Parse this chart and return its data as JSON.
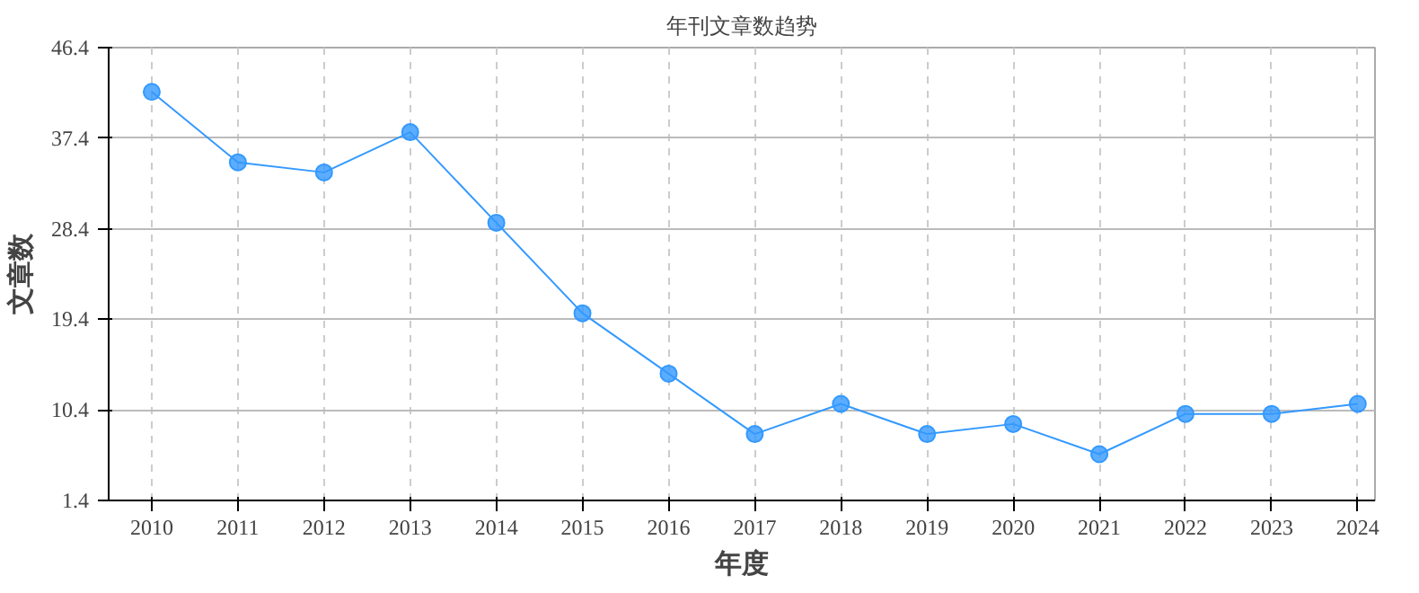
{
  "chart_data": {
    "type": "line",
    "title": "年刊文章数趋势",
    "xlabel": "年度",
    "ylabel": "文章数",
    "x": [
      2010,
      2011,
      2012,
      2013,
      2014,
      2015,
      2016,
      2017,
      2018,
      2019,
      2020,
      2021,
      2022,
      2023,
      2024
    ],
    "series": [
      {
        "color": "#3399ff",
        "values": [
          42,
          35,
          34,
          38,
          29,
          20,
          14,
          8,
          11,
          8,
          9,
          6,
          10,
          10,
          11
        ]
      }
    ],
    "xlim": [
      2009.5,
      2024.2
    ],
    "xticks": [
      2010,
      2011,
      2012,
      2013,
      2014,
      2015,
      2016,
      2017,
      2018,
      2019,
      2020,
      2021,
      2022,
      2023,
      2024
    ],
    "ylim": [
      1.4,
      46.4
    ],
    "yticks": [
      1.4,
      10.4,
      19.4,
      28.4,
      37.4,
      46.4
    ],
    "grid": true,
    "marker": "circle",
    "line_style": "solid"
  }
}
